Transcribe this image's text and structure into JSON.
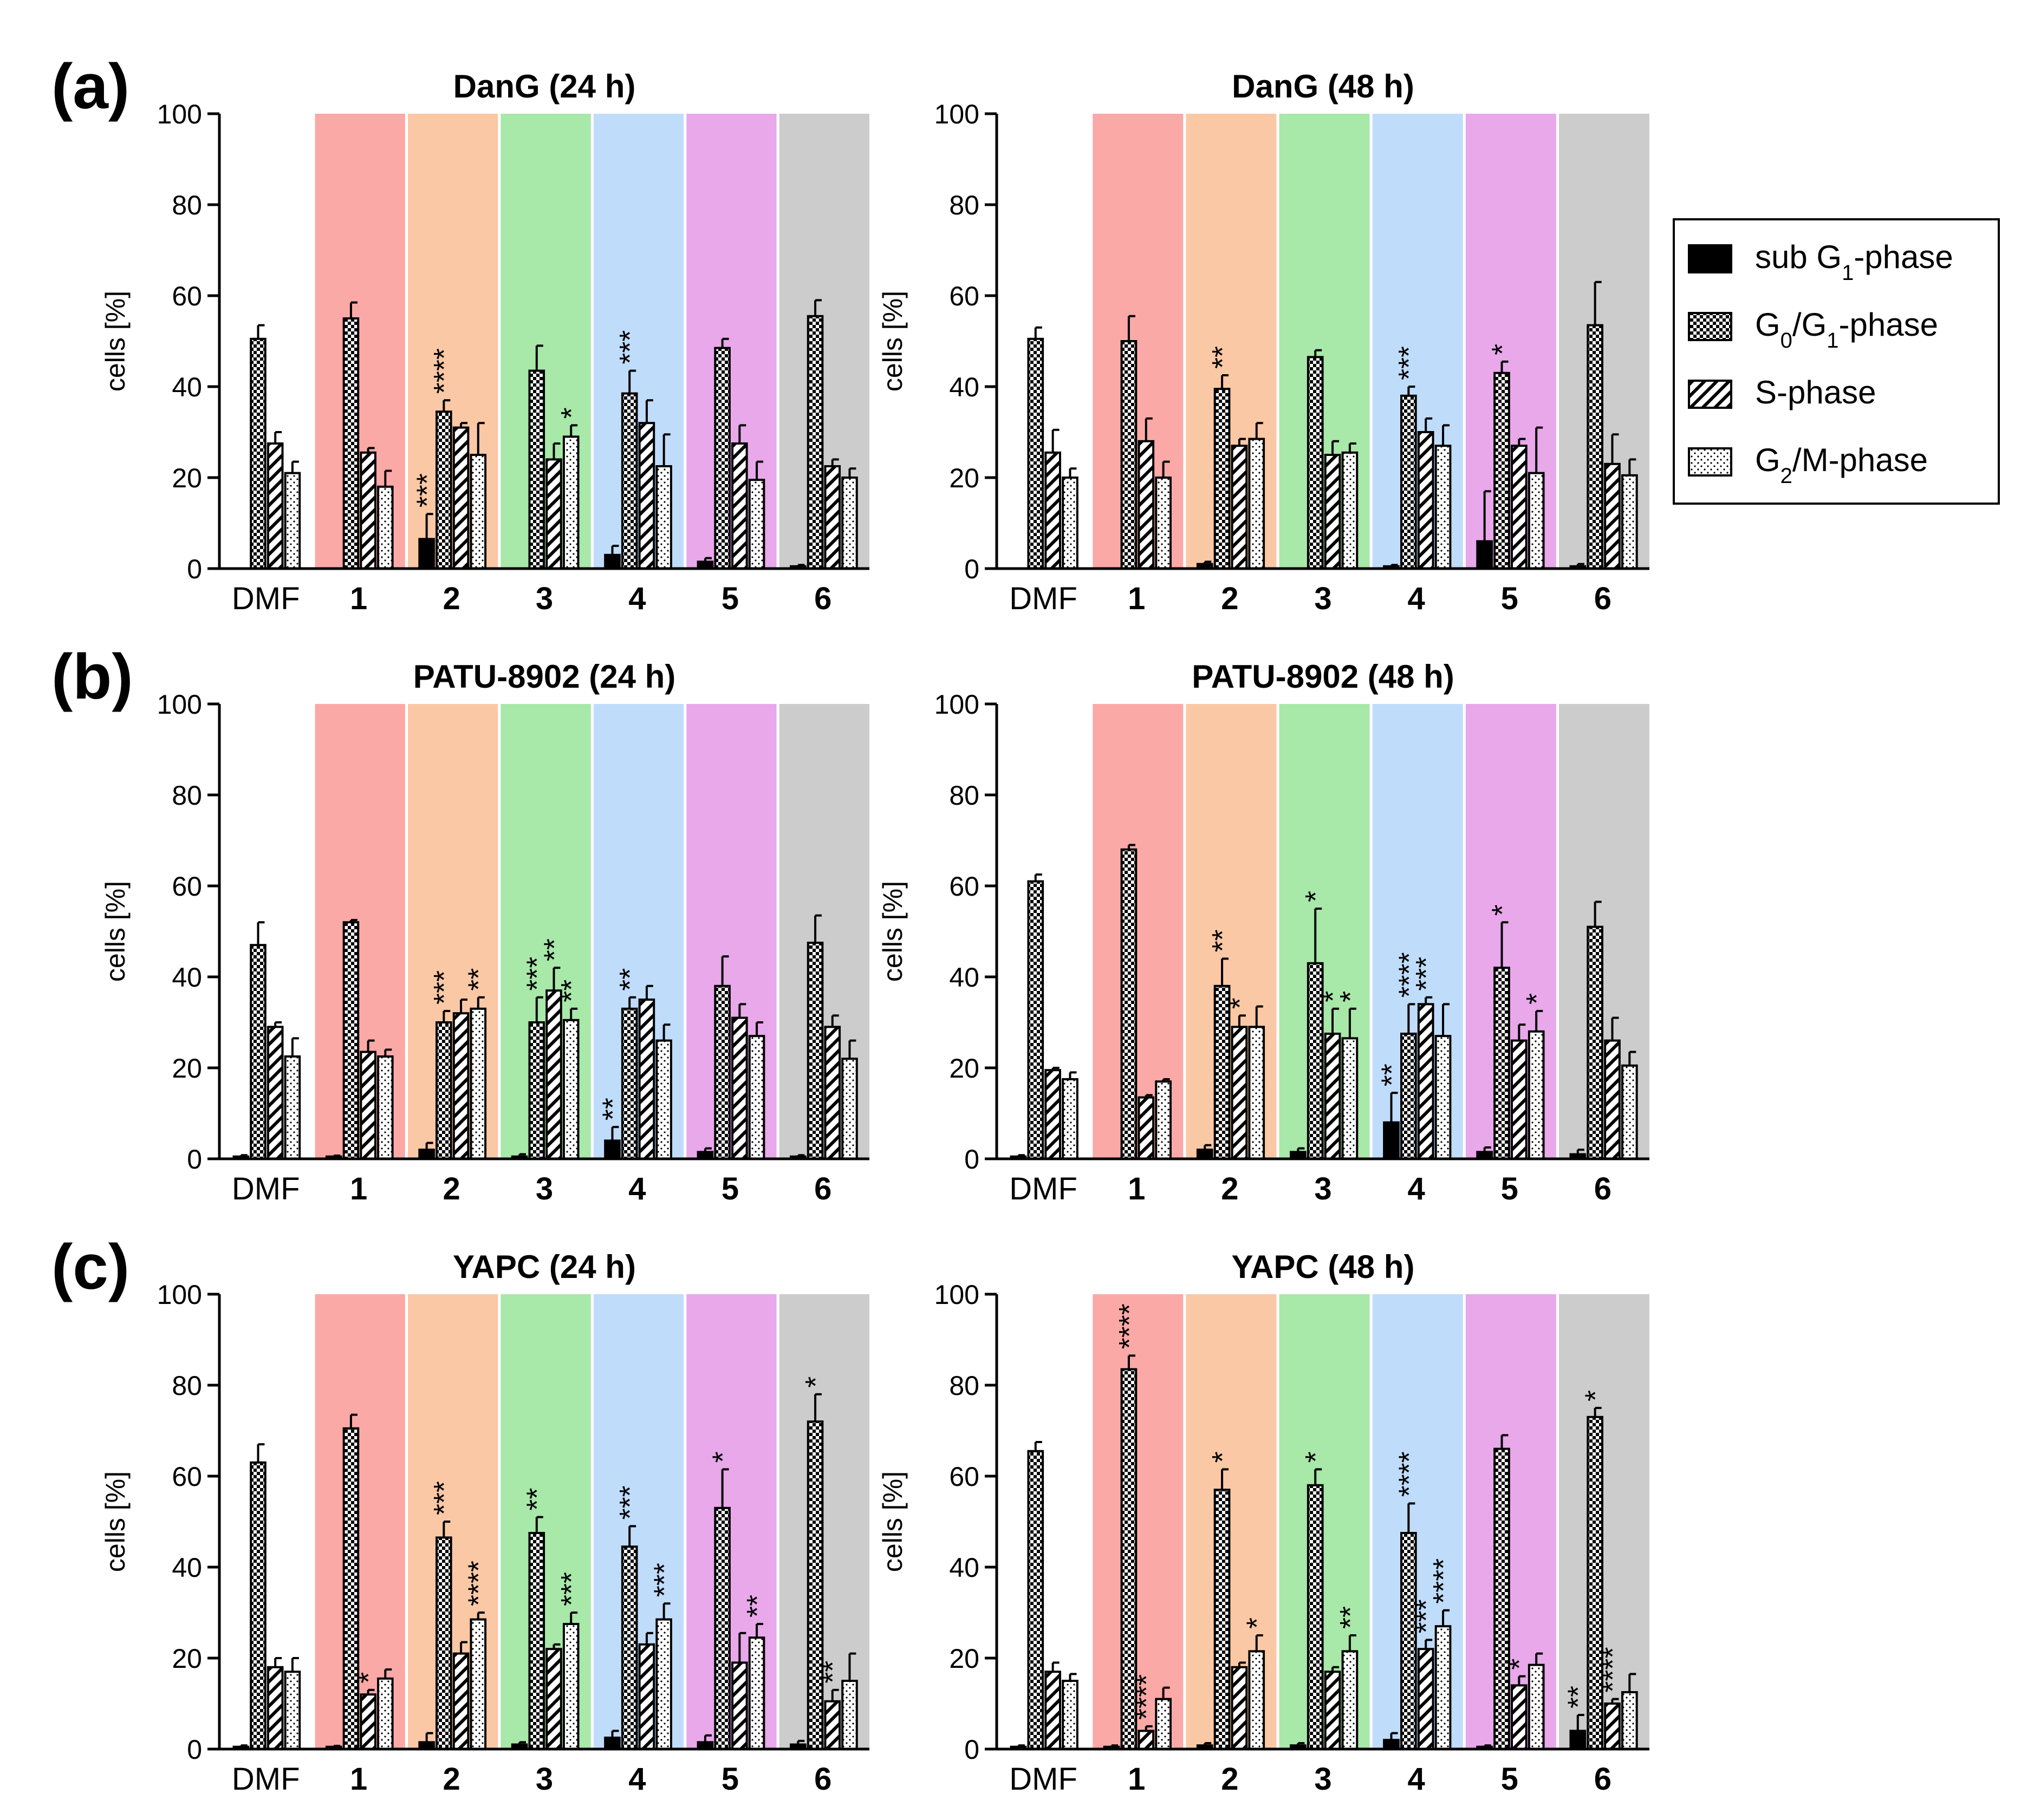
{
  "figure": {
    "panel_labels": [
      "(a)",
      "(b)",
      "(c)"
    ],
    "colors": {
      "group_bg": [
        "#ffffff",
        "#fba9a7",
        "#fbc8a5",
        "#a8e8a8",
        "#c0dcfb",
        "#e8a8ea",
        "#cccccc"
      ],
      "bar_stroke": "#000000"
    },
    "legend": {
      "entries": [
        {
          "pre": "sub G",
          "sub": "1",
          "post": "-phase",
          "pattern": "solid"
        },
        {
          "pre": "G",
          "sub": "0",
          "post": "/G",
          "sub2": "1",
          "post2": "-phase",
          "pattern": "check"
        },
        {
          "pre": "S-phase",
          "sub": "",
          "post": "",
          "pattern": "hatch"
        },
        {
          "pre": "G",
          "sub": "2",
          "post": "/M-phase",
          "pattern": "dots"
        }
      ]
    }
  },
  "chart_data": [
    {
      "type": "bar",
      "title": "DanG (24 h)",
      "ylabel": "cells [%]",
      "ylim": [
        0,
        100
      ],
      "yticks": [
        0,
        20,
        40,
        60,
        80,
        100
      ],
      "categories": [
        "DMF",
        "1",
        "2",
        "3",
        "4",
        "5",
        "6"
      ],
      "series": [
        {
          "name": "sub G1-phase",
          "values": [
            0,
            0,
            6.5,
            0,
            3,
            1.5,
            0.5
          ],
          "errors": [
            0,
            0,
            5.5,
            0,
            2,
            0.8,
            0.3
          ],
          "sig": [
            "",
            "",
            "***",
            "",
            "",
            "",
            ""
          ]
        },
        {
          "name": "G0/G1-phase",
          "values": [
            50.5,
            55,
            34.5,
            43.5,
            38.5,
            48.5,
            55.5
          ],
          "errors": [
            3,
            3.5,
            2.5,
            5.5,
            5,
            2,
            3.5
          ],
          "sig": [
            "",
            "",
            "****",
            "",
            "***",
            "",
            ""
          ]
        },
        {
          "name": "S-phase",
          "values": [
            27.5,
            25.5,
            31,
            24,
            32,
            27.5,
            22.5
          ],
          "errors": [
            2.5,
            1,
            1,
            3.5,
            5,
            4,
            1.5
          ],
          "sig": [
            "",
            "",
            "",
            "",
            "",
            "",
            ""
          ]
        },
        {
          "name": "G2/M-phase",
          "values": [
            21,
            18,
            25,
            29,
            22.5,
            19.5,
            20
          ],
          "errors": [
            2.5,
            3.5,
            7,
            2.5,
            7,
            4,
            2
          ],
          "sig": [
            "",
            "",
            "",
            "*",
            "",
            "",
            ""
          ]
        }
      ]
    },
    {
      "type": "bar",
      "title": "DanG (48 h)",
      "ylabel": "cells [%]",
      "ylim": [
        0,
        100
      ],
      "yticks": [
        0,
        20,
        40,
        60,
        80,
        100
      ],
      "categories": [
        "DMF",
        "1",
        "2",
        "3",
        "4",
        "5",
        "6"
      ],
      "series": [
        {
          "name": "sub G1-phase",
          "values": [
            0,
            0,
            1,
            0,
            0.5,
            6,
            0.5
          ],
          "errors": [
            0,
            0,
            0.5,
            0,
            0.3,
            11,
            0.5
          ],
          "sig": [
            "",
            "",
            "",
            "",
            "",
            "",
            ""
          ]
        },
        {
          "name": "G0/G1-phase",
          "values": [
            50.5,
            50,
            39.5,
            46.5,
            38,
            43,
            53.5
          ],
          "errors": [
            2.5,
            5.5,
            3,
            1.5,
            2,
            2.5,
            9.5
          ],
          "sig": [
            "",
            "",
            "**",
            "",
            "***",
            "*",
            ""
          ]
        },
        {
          "name": "S-phase",
          "values": [
            25.5,
            28,
            27,
            25,
            30,
            27,
            23
          ],
          "errors": [
            5,
            5,
            1.5,
            3,
            3,
            1.5,
            6.5
          ],
          "sig": [
            "",
            "",
            "",
            "",
            "",
            "",
            ""
          ]
        },
        {
          "name": "G2/M-phase",
          "values": [
            20,
            20,
            28.5,
            25.5,
            27,
            21,
            20.5
          ],
          "errors": [
            2,
            3.5,
            3.5,
            2,
            4.5,
            10,
            3.5
          ],
          "sig": [
            "",
            "",
            "",
            "",
            "",
            "",
            ""
          ]
        }
      ]
    },
    {
      "type": "bar",
      "title": "PATU-8902 (24 h)",
      "ylabel": "cells [%]",
      "ylim": [
        0,
        100
      ],
      "yticks": [
        0,
        20,
        40,
        60,
        80,
        100
      ],
      "categories": [
        "DMF",
        "1",
        "2",
        "3",
        "4",
        "5",
        "6"
      ],
      "series": [
        {
          "name": "sub G1-phase",
          "values": [
            0.5,
            0.5,
            2,
            0.5,
            4,
            1.5,
            0.5
          ],
          "errors": [
            0.3,
            0.2,
            1.5,
            0.5,
            3,
            0.8,
            0.3
          ],
          "sig": [
            "",
            "",
            "",
            "",
            "**",
            "",
            ""
          ]
        },
        {
          "name": "G0/G1-phase",
          "values": [
            47,
            52,
            30,
            30,
            33,
            38,
            47.5
          ],
          "errors": [
            5,
            0.5,
            2.5,
            5.5,
            2.5,
            6.5,
            6
          ],
          "sig": [
            "",
            "",
            "***",
            "***",
            "**",
            "",
            ""
          ]
        },
        {
          "name": "S-phase",
          "values": [
            29,
            23.5,
            32,
            37,
            35,
            31,
            29
          ],
          "errors": [
            1,
            2.5,
            3,
            5,
            3,
            3,
            2.5
          ],
          "sig": [
            "",
            "",
            "",
            "**",
            "",
            "",
            ""
          ]
        },
        {
          "name": "G2/M-phase",
          "values": [
            22.5,
            22.5,
            33,
            30.5,
            26,
            27,
            22
          ],
          "errors": [
            4,
            1.5,
            2.5,
            2.5,
            3.5,
            3,
            4
          ],
          "sig": [
            "",
            "",
            "**",
            "**",
            "",
            "",
            ""
          ]
        }
      ]
    },
    {
      "type": "bar",
      "title": "PATU-8902 (48 h)",
      "ylabel": "cells [%]",
      "ylim": [
        0,
        100
      ],
      "yticks": [
        0,
        20,
        40,
        60,
        80,
        100
      ],
      "categories": [
        "DMF",
        "1",
        "2",
        "3",
        "4",
        "5",
        "6"
      ],
      "series": [
        {
          "name": "sub G1-phase",
          "values": [
            0.5,
            0,
            2,
            1.5,
            8,
            1.5,
            1
          ],
          "errors": [
            0.3,
            0,
            1,
            0.8,
            6.5,
            1,
            1
          ],
          "sig": [
            "",
            "",
            "",
            "",
            "**",
            "",
            ""
          ]
        },
        {
          "name": "G0/G1-phase",
          "values": [
            61,
            68,
            38,
            43,
            27.5,
            42,
            51
          ],
          "errors": [
            1.5,
            1,
            6,
            12,
            6.5,
            10,
            5.5
          ],
          "sig": [
            "",
            "",
            "**",
            "*",
            "****",
            "*",
            ""
          ]
        },
        {
          "name": "S-phase",
          "values": [
            19.5,
            13.5,
            29,
            27.5,
            34,
            26,
            26
          ],
          "errors": [
            0.5,
            0.5,
            2.5,
            5.5,
            1.5,
            3.5,
            5
          ],
          "sig": [
            "",
            "",
            "*",
            "*",
            "***",
            "",
            ""
          ]
        },
        {
          "name": "G2/M-phase",
          "values": [
            17.5,
            17,
            29,
            26.5,
            27,
            28,
            20.5
          ],
          "errors": [
            1.5,
            0.5,
            4.5,
            6.5,
            7,
            4.5,
            3
          ],
          "sig": [
            "",
            "",
            "",
            "*",
            "",
            "*",
            ""
          ]
        }
      ]
    },
    {
      "type": "bar",
      "title": "YAPC (24 h)",
      "ylabel": "cells [%]",
      "ylim": [
        0,
        100
      ],
      "yticks": [
        0,
        20,
        40,
        60,
        80,
        100
      ],
      "categories": [
        "DMF",
        "1",
        "2",
        "3",
        "4",
        "5",
        "6"
      ],
      "series": [
        {
          "name": "sub G1-phase",
          "values": [
            0.5,
            0.5,
            1.5,
            1,
            2.5,
            1.5,
            1
          ],
          "errors": [
            0.3,
            0.2,
            2,
            0.5,
            1.5,
            1.5,
            0.8
          ],
          "sig": [
            "",
            "",
            "",
            "",
            "",
            "",
            ""
          ]
        },
        {
          "name": "G0/G1-phase",
          "values": [
            63,
            70.5,
            46.5,
            47.5,
            44.5,
            53,
            72
          ],
          "errors": [
            4,
            3,
            3.5,
            3.5,
            4.5,
            8.5,
            6
          ],
          "sig": [
            "",
            "",
            "***",
            "**",
            "***",
            "*",
            "*"
          ]
        },
        {
          "name": "S-phase",
          "values": [
            18,
            12,
            21,
            22,
            23,
            19,
            10.5
          ],
          "errors": [
            2,
            1,
            2.5,
            1,
            2.5,
            6.5,
            2.5
          ],
          "sig": [
            "",
            "*",
            "",
            "",
            "",
            "",
            "**"
          ]
        },
        {
          "name": "G2/M-phase",
          "values": [
            17,
            15.5,
            28.5,
            27.5,
            28.5,
            24.5,
            15
          ],
          "errors": [
            3,
            2,
            1.5,
            2.5,
            3.5,
            3,
            6
          ],
          "sig": [
            "",
            "",
            "****",
            "***",
            "***",
            "**",
            ""
          ]
        }
      ]
    },
    {
      "type": "bar",
      "title": "YAPC (48 h)",
      "ylabel": "cells [%]",
      "ylim": [
        0,
        100
      ],
      "yticks": [
        0,
        20,
        40,
        60,
        80,
        100
      ],
      "categories": [
        "DMF",
        "1",
        "2",
        "3",
        "4",
        "5",
        "6"
      ],
      "series": [
        {
          "name": "sub G1-phase",
          "values": [
            0.5,
            0.5,
            0.8,
            0.8,
            2,
            0.5,
            4
          ],
          "errors": [
            0.3,
            0.3,
            0.5,
            0.5,
            1.5,
            0.3,
            3.5
          ],
          "sig": [
            "",
            "",
            "",
            "",
            "",
            "",
            "**"
          ]
        },
        {
          "name": "G0/G1-phase",
          "values": [
            65.5,
            83.5,
            57,
            58,
            47.5,
            66,
            73
          ],
          "errors": [
            2,
            3,
            4.5,
            3.5,
            6.5,
            3,
            2
          ],
          "sig": [
            "",
            "****",
            "*",
            "*",
            "****",
            "",
            "*"
          ]
        },
        {
          "name": "S-phase",
          "values": [
            17,
            4,
            18,
            17,
            22,
            14,
            10
          ],
          "errors": [
            2,
            1,
            1,
            1,
            2,
            2,
            1
          ],
          "sig": [
            "",
            "****",
            "",
            "",
            "***",
            "*",
            "****"
          ]
        },
        {
          "name": "G2/M-phase",
          "values": [
            15,
            11,
            21.5,
            21.5,
            27,
            18.5,
            12.5
          ],
          "errors": [
            1.5,
            2.5,
            3.5,
            3.5,
            3.5,
            2.5,
            4
          ],
          "sig": [
            "",
            "",
            "*",
            "**",
            "****",
            "",
            ""
          ]
        }
      ]
    }
  ]
}
